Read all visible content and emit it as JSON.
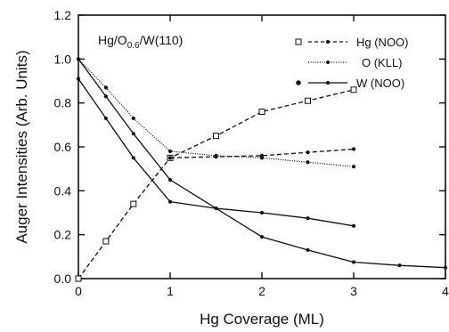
{
  "chart_data": {
    "type": "line",
    "xlabel": "Hg Coverage (ML)",
    "ylabel": "Auger Intensities (Arb. Units)",
    "xlim": [
      0,
      4
    ],
    "ylim": [
      0,
      1.2
    ],
    "xticks": [
      "0",
      "1",
      "2",
      "3",
      "4"
    ],
    "yticks": [
      "0.0",
      "0.2",
      "0.4",
      "0.6",
      "0.8",
      "1.0",
      "1.2"
    ],
    "annotation": {
      "prefix": "Hg/O",
      "subscript": "0.6",
      "suffix": "/W(110)"
    },
    "legend_position": "top-right",
    "grid": false,
    "legend": [
      {
        "label": "Hg (NOO)",
        "style": "dashed"
      },
      {
        "label": "O (KLL)",
        "style": "dotted"
      },
      {
        "label": "W (NOO)",
        "style": "solid"
      }
    ],
    "series": [
      {
        "name": "Hg (NOO)",
        "marker": "open-square",
        "line": "dashed",
        "points": [
          [
            0,
            0.0
          ],
          [
            0.3,
            0.17
          ],
          [
            0.6,
            0.34
          ],
          [
            1.0,
            0.55
          ],
          [
            1.5,
            0.65
          ],
          [
            2.0,
            0.76
          ],
          [
            2.5,
            0.81
          ],
          [
            3.0,
            0.86
          ]
        ]
      },
      {
        "name": "Hg (NOO)",
        "marker": "dot",
        "line": "dashed",
        "points": [
          [
            1.0,
            0.55
          ],
          [
            1.5,
            0.555
          ],
          [
            2.0,
            0.56
          ],
          [
            2.5,
            0.575
          ],
          [
            3.0,
            0.59
          ]
        ]
      },
      {
        "name": "O (KLL)",
        "marker": "dot",
        "line": "dotted",
        "points": [
          [
            0,
            1.0
          ],
          [
            0.3,
            0.87
          ],
          [
            0.6,
            0.73
          ],
          [
            1.0,
            0.58
          ],
          [
            1.5,
            0.56
          ],
          [
            2.0,
            0.55
          ],
          [
            2.5,
            0.53
          ],
          [
            3.0,
            0.51
          ]
        ]
      },
      {
        "name": "W (NOO)",
        "marker": "dot",
        "line": "solid",
        "points": [
          [
            0,
            1.0
          ],
          [
            0.3,
            0.83
          ],
          [
            0.6,
            0.66
          ],
          [
            1.0,
            0.45
          ],
          [
            1.5,
            0.32
          ],
          [
            2.0,
            0.19
          ],
          [
            2.5,
            0.13
          ],
          [
            3.0,
            0.075
          ],
          [
            3.5,
            0.06
          ],
          [
            4.0,
            0.05
          ]
        ]
      },
      {
        "name": "W (NOO)",
        "marker": "dot",
        "line": "solid",
        "points": [
          [
            0,
            0.91
          ],
          [
            0.3,
            0.73
          ],
          [
            0.6,
            0.55
          ],
          [
            1.0,
            0.35
          ],
          [
            1.5,
            0.32
          ],
          [
            2.0,
            0.3
          ],
          [
            2.5,
            0.275
          ],
          [
            3.0,
            0.24
          ]
        ]
      }
    ]
  }
}
